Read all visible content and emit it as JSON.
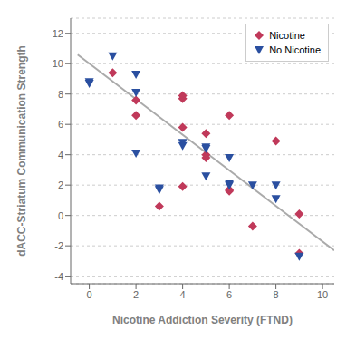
{
  "chart_data": {
    "type": "scatter",
    "xlabel": "Nicotine Addiction Severity (FTND)",
    "ylabel": "dACC-Striatum Communication Strength",
    "xlim": [
      -0.8,
      10.5
    ],
    "ylim": [
      -4.5,
      13.0
    ],
    "xticks": [
      0,
      2,
      4,
      6,
      8,
      10
    ],
    "yticks": [
      -4,
      -2,
      0,
      2,
      4,
      6,
      8,
      10,
      12
    ],
    "grid": "y",
    "legend": "upper right",
    "series": [
      {
        "type": "line",
        "color": "#aaaaaa",
        "x": [
          -0.5,
          10.5
        ],
        "y": [
          10.6,
          -2.3
        ]
      },
      {
        "name": "Nicotine",
        "type": "scatter",
        "marker": "diamond",
        "color": "#c0395a",
        "x": [
          1,
          2,
          2,
          3,
          4,
          4,
          4,
          4,
          5,
          5,
          5,
          6,
          6,
          6,
          7,
          8,
          9,
          9
        ],
        "y": [
          9.4,
          7.6,
          6.6,
          0.6,
          1.9,
          5.8,
          7.7,
          7.9,
          3.8,
          4.0,
          5.4,
          1.6,
          1.7,
          6.6,
          -0.7,
          4.9,
          -2.5,
          0.1
        ]
      },
      {
        "name": "No Nicotine",
        "type": "scatter",
        "marker": "triangle-down",
        "color": "#2a4fa0",
        "x": [
          0,
          0,
          1,
          2,
          2,
          2,
          3,
          3,
          4,
          4,
          5,
          5,
          5,
          6,
          6,
          6,
          7,
          8,
          8,
          9
        ],
        "y": [
          8.7,
          8.8,
          10.5,
          4.1,
          8.1,
          9.3,
          1.7,
          1.8,
          4.6,
          4.8,
          4.4,
          4.5,
          2.6,
          2.0,
          2.1,
          3.8,
          2.0,
          1.1,
          2.0,
          -2.7
        ]
      }
    ]
  }
}
